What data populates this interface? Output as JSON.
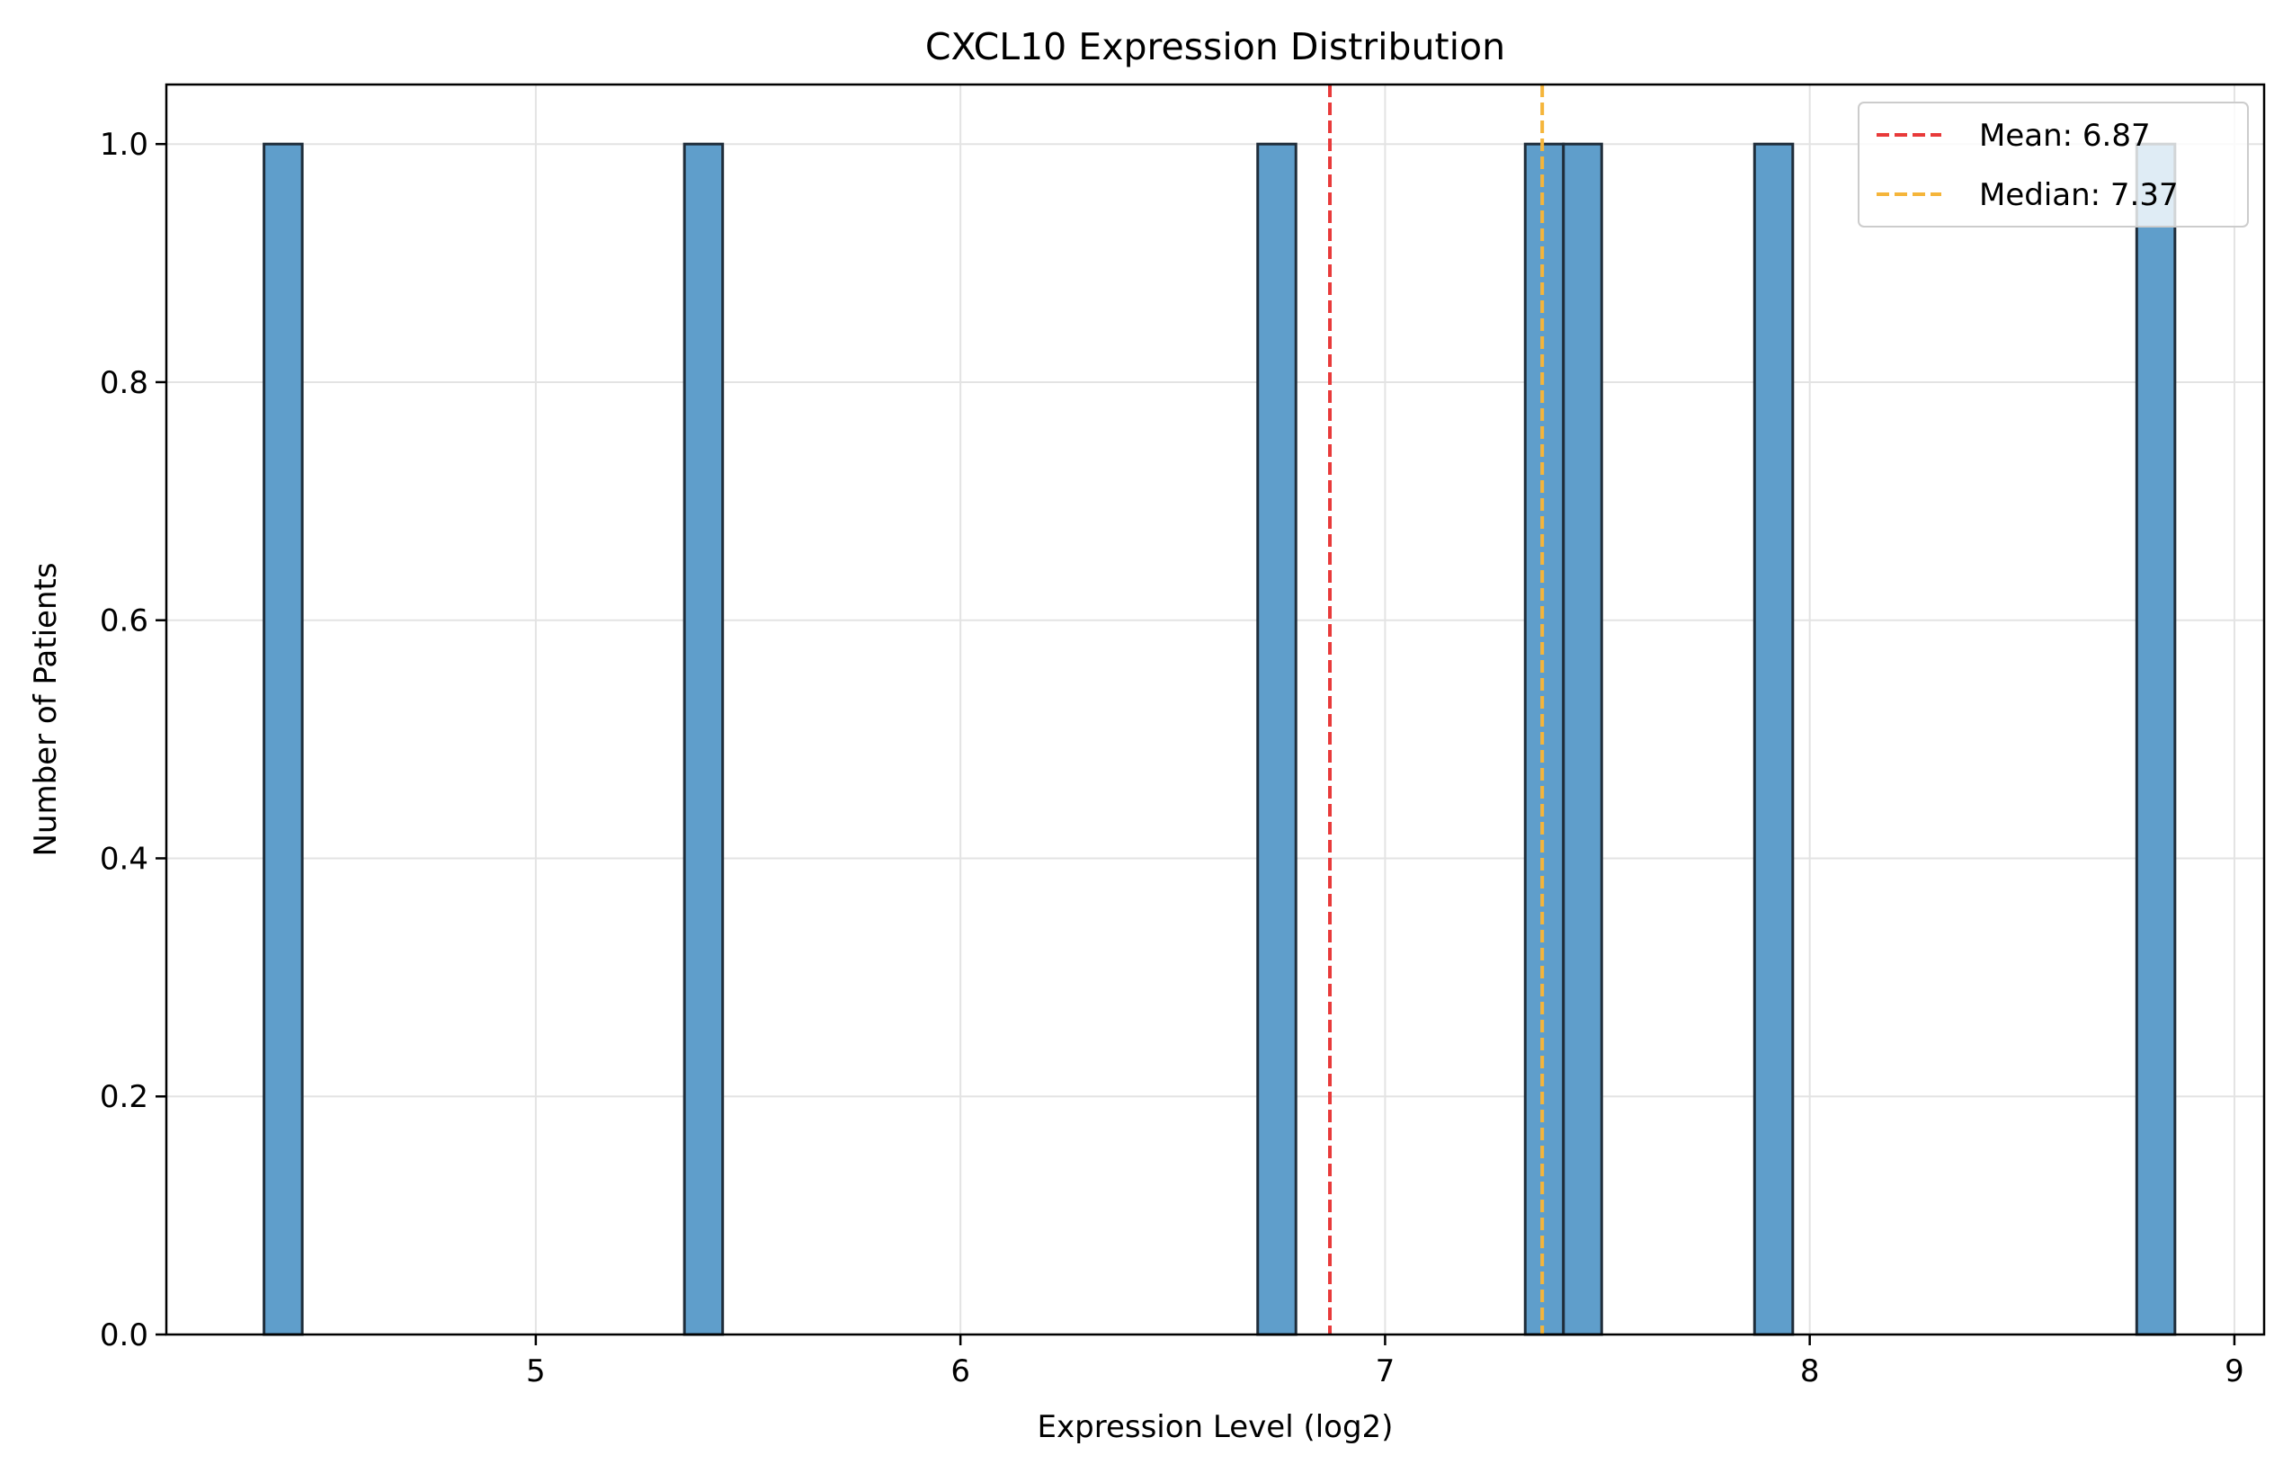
{
  "chart_data": {
    "type": "bar",
    "title": "CXCL10 Expression Distribution",
    "xlabel": "Expression Level (log2)",
    "ylabel": "Number of Patients",
    "xlim": [
      4.13,
      9.07
    ],
    "ylim": [
      0,
      1.05
    ],
    "x_ticks": [
      "5",
      "6",
      "7",
      "8",
      "9"
    ],
    "x_tick_values": [
      5,
      6,
      7,
      8,
      9
    ],
    "y_ticks": [
      "0.0",
      "0.2",
      "0.4",
      "0.6",
      "0.8",
      "1.0"
    ],
    "y_tick_values": [
      0,
      0.2,
      0.4,
      0.6,
      0.8,
      1.0
    ],
    "grid": true,
    "legend_position": "top-right",
    "bar_color": "#5f9ecb",
    "bar_edge_color": "#1f2d3a",
    "bins": [
      {
        "x0": 4.36,
        "x1": 4.45,
        "count": 1
      },
      {
        "x0": 5.35,
        "x1": 5.44,
        "count": 1
      },
      {
        "x0": 6.7,
        "x1": 6.79,
        "count": 1
      },
      {
        "x0": 7.33,
        "x1": 7.42,
        "count": 1
      },
      {
        "x0": 7.42,
        "x1": 7.51,
        "count": 1
      },
      {
        "x0": 7.87,
        "x1": 7.96,
        "count": 1
      },
      {
        "x0": 8.77,
        "x1": 8.86,
        "count": 1
      }
    ],
    "reference_lines": [
      {
        "label": "Mean: 6.87",
        "value": 6.87,
        "color": "#e83a3a"
      },
      {
        "label": "Median: 7.37",
        "value": 7.37,
        "color": "#f5b53a"
      }
    ]
  }
}
